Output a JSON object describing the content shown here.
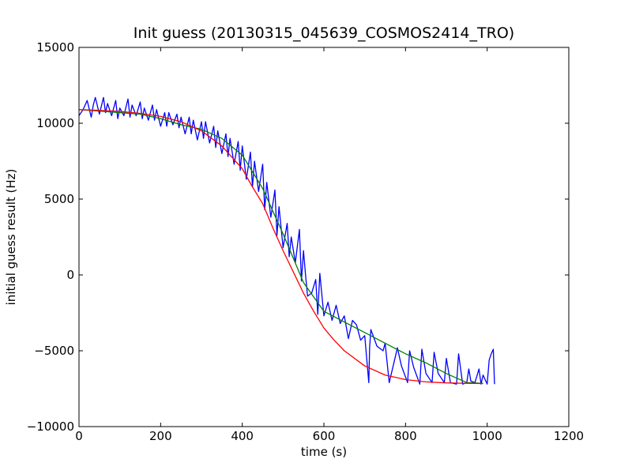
{
  "chart_data": {
    "type": "line",
    "title": "Init guess (20130315_045639_COSMOS2414_TRO)",
    "xlabel": "time (s)",
    "ylabel": "initial guess result (Hz)",
    "xlim": [
      0,
      1200
    ],
    "ylim": [
      -10000,
      15000
    ],
    "x_ticks": [
      0,
      200,
      400,
      600,
      800,
      1000,
      1200
    ],
    "x_tick_labels": [
      "0",
      "200",
      "400",
      "600",
      "800",
      "1000",
      "1200"
    ],
    "y_ticks": [
      -10000,
      -5000,
      0,
      5000,
      10000,
      15000
    ],
    "y_tick_labels": [
      "−10000",
      "−5000",
      "0",
      "5000",
      "10000",
      "15000"
    ],
    "grid": false,
    "legend": "none",
    "series": [
      {
        "color": "#0000ff",
        "x": [
          0,
          10,
          20,
          30,
          35,
          40,
          50,
          60,
          65,
          70,
          80,
          90,
          95,
          100,
          110,
          120,
          125,
          130,
          140,
          150,
          155,
          160,
          170,
          180,
          185,
          190,
          200,
          210,
          215,
          220,
          230,
          240,
          245,
          250,
          260,
          270,
          275,
          280,
          290,
          300,
          305,
          310,
          320,
          330,
          335,
          340,
          350,
          360,
          365,
          370,
          380,
          390,
          395,
          400,
          410,
          420,
          425,
          430,
          440,
          450,
          455,
          460,
          470,
          480,
          485,
          490,
          500,
          510,
          515,
          520,
          530,
          540,
          545,
          550,
          555,
          560,
          570,
          580,
          585,
          590,
          600,
          610,
          620,
          630,
          640,
          650,
          660,
          670,
          680,
          690,
          700,
          710,
          712,
          715,
          730,
          745,
          750,
          760,
          775,
          780,
          790,
          805,
          810,
          820,
          835,
          840,
          850,
          865,
          870,
          880,
          895,
          900,
          910,
          925,
          930,
          940,
          950,
          955,
          960,
          970,
          980,
          985,
          990,
          1000,
          1005,
          1010,
          1015,
          1018
        ],
        "y": [
          10500,
          10900,
          11500,
          10400,
          11200,
          11700,
          10600,
          11700,
          10700,
          11300,
          10500,
          11500,
          10300,
          11000,
          10500,
          11600,
          10400,
          11200,
          10500,
          11400,
          10300,
          11000,
          10200,
          11200,
          10200,
          10900,
          9800,
          10700,
          9800,
          10700,
          9900,
          10600,
          9700,
          10400,
          9300,
          10400,
          9300,
          10200,
          8900,
          10100,
          9000,
          10100,
          8700,
          9800,
          8400,
          9500,
          8000,
          9300,
          7800,
          9000,
          7300,
          8800,
          6900,
          8500,
          6300,
          8100,
          5800,
          7500,
          5500,
          7300,
          4300,
          6100,
          3800,
          5600,
          2600,
          4500,
          1800,
          3400,
          1200,
          2500,
          800,
          3000,
          -400,
          1600,
          0,
          -1400,
          -1200,
          -300,
          -2600,
          100,
          -2700,
          -1800,
          -3000,
          -2000,
          -3200,
          -2700,
          -4200,
          -3000,
          -3300,
          -4300,
          -4000,
          -7100,
          -4800,
          -3600,
          -4700,
          -5000,
          -4500,
          -7100,
          -5400,
          -4800,
          -6000,
          -7100,
          -5000,
          -6100,
          -7200,
          -4900,
          -6500,
          -7100,
          -5100,
          -6500,
          -7100,
          -5500,
          -7100,
          -7200,
          -5200,
          -7200,
          -7100,
          -6200,
          -7000,
          -7100,
          -6200,
          -7200,
          -6600,
          -7200,
          -5600,
          -5200,
          -4900,
          -7200
        ]
      },
      {
        "color": "#008000",
        "x": [
          0,
          50,
          100,
          150,
          200,
          250,
          300,
          350,
          400,
          450,
          500,
          550,
          600,
          650,
          700,
          750,
          800,
          850,
          900,
          950,
          990
        ],
        "y": [
          10900,
          10800,
          10700,
          10600,
          10300,
          9900,
          9600,
          9000,
          7900,
          5700,
          2700,
          -500,
          -2400,
          -3100,
          -3800,
          -4500,
          -5200,
          -5800,
          -6500,
          -7100,
          -7150
        ]
      },
      {
        "color": "#ff0000",
        "x": [
          0,
          50,
          100,
          150,
          200,
          250,
          300,
          350,
          400,
          425,
          450,
          475,
          500,
          525,
          550,
          575,
          600,
          625,
          650,
          700,
          750,
          800,
          850,
          900,
          950,
          990
        ],
        "y": [
          10900,
          10850,
          10780,
          10650,
          10450,
          10100,
          9500,
          8500,
          7000,
          5800,
          4700,
          3100,
          1600,
          200,
          -1200,
          -2400,
          -3500,
          -4300,
          -5000,
          -6000,
          -6600,
          -6900,
          -7050,
          -7120,
          -7150,
          -7160
        ]
      }
    ]
  }
}
